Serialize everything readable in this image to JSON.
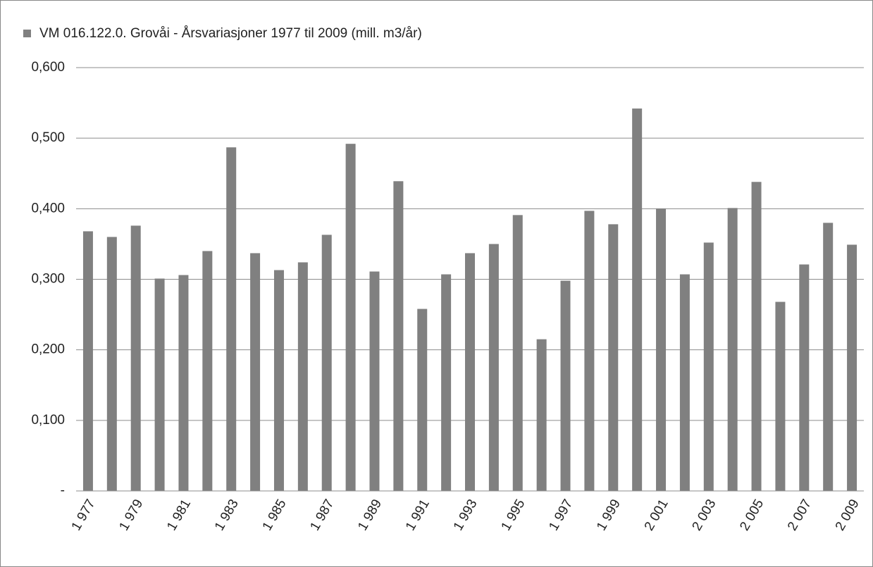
{
  "chart_data": {
    "type": "bar",
    "categories": [
      "1 977",
      null,
      "1 979",
      null,
      "1 981",
      null,
      "1 983",
      null,
      "1 985",
      null,
      "1 987",
      null,
      "1 989",
      null,
      "1 991",
      null,
      "1 993",
      null,
      "1 995",
      null,
      "1 997",
      null,
      "1 999",
      null,
      "2 001",
      null,
      "2 003",
      null,
      "2 005",
      null,
      "2 007",
      null,
      "2 009"
    ],
    "series": [
      {
        "name": "VM 016.122.0. Grovåi - Årsvariasjoner 1977 til 2009 (mill. m3/år)",
        "color": "#808080",
        "values": [
          0.368,
          0.36,
          0.376,
          0.301,
          0.306,
          0.34,
          0.487,
          0.337,
          0.313,
          0.324,
          0.363,
          0.492,
          0.311,
          0.439,
          0.258,
          0.307,
          0.337,
          0.35,
          0.391,
          0.215,
          0.298,
          0.397,
          0.378,
          0.542,
          0.4,
          0.307,
          0.352,
          0.401,
          0.438,
          0.268,
          0.321,
          0.38,
          0.349
        ]
      }
    ],
    "ylim": [
      0,
      0.6
    ],
    "yticks": [
      {
        "value": 0,
        "label": "-"
      },
      {
        "value": 0.1,
        "label": "0,100"
      },
      {
        "value": 0.2,
        "label": "0,200"
      },
      {
        "value": 0.3,
        "label": "0,300"
      },
      {
        "value": 0.4,
        "label": "0,400"
      },
      {
        "value": 0.5,
        "label": "0,500"
      },
      {
        "value": 0.6,
        "label": "0,600"
      }
    ],
    "grid": true,
    "legend": "top-left"
  }
}
